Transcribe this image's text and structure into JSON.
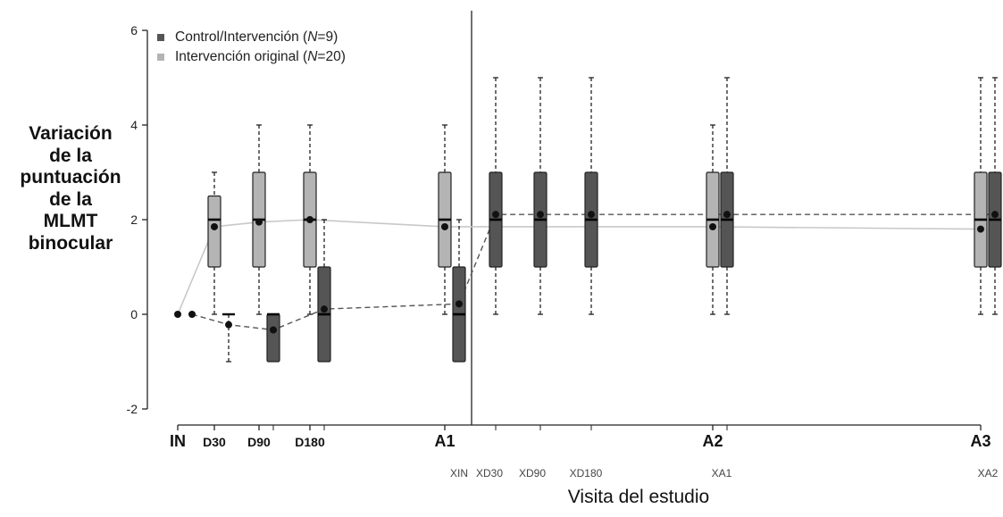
{
  "chart_data": {
    "type": "box",
    "ylabel_lines": [
      "Variación",
      "de la",
      "puntuación",
      "de la",
      "MLMT",
      "binocular"
    ],
    "xlabel": "Visita del estudio",
    "ylim": [
      -2,
      6
    ],
    "yticks": [
      -2,
      0,
      2,
      4,
      6
    ],
    "legend_position": "top-left",
    "colors": {
      "control": "#555555",
      "original": "#b4b4b4",
      "mean_line_original": "#c8c8c8",
      "mean_line_control": "#555555"
    },
    "visits_main": [
      "IN",
      "D30",
      "D90",
      "D180",
      "A1",
      "A2",
      "A3"
    ],
    "visits_crossover": [
      "XIN",
      "XD30",
      "XD90",
      "XD180",
      "XA1",
      "XA2"
    ],
    "series": [
      {
        "name": "Control/Intervención (N=9)",
        "boxes": [
          {
            "visit": "IN",
            "q1": 0,
            "median": 0,
            "q3": 0,
            "min": 0,
            "max": 0,
            "mean": 0
          },
          {
            "visit": "D30",
            "q1": 0,
            "median": 0,
            "q3": 0,
            "min": -1,
            "max": 0,
            "mean": -0.22
          },
          {
            "visit": "D90",
            "q1": -1,
            "median": 0,
            "q3": 0,
            "min": -1,
            "max": 0,
            "mean": -0.33
          },
          {
            "visit": "D180",
            "q1": -1,
            "median": 0,
            "q3": 1,
            "min": -1,
            "max": 2,
            "mean": 0.11
          },
          {
            "visit": "A1 / XIN",
            "q1": -1,
            "median": 0,
            "q3": 1,
            "min": -1,
            "max": 2,
            "mean": 0.22
          },
          {
            "visit": "XD30",
            "q1": 1,
            "median": 2,
            "q3": 3,
            "min": 0,
            "max": 5,
            "mean": 2.11
          },
          {
            "visit": "XD90",
            "q1": 1,
            "median": 2,
            "q3": 3,
            "min": 0,
            "max": 5,
            "mean": 2.11
          },
          {
            "visit": "XD180",
            "q1": 1,
            "median": 2,
            "q3": 3,
            "min": 0,
            "max": 5,
            "mean": 2.11
          },
          {
            "visit": "A2 / XA1",
            "q1": 1,
            "median": 2,
            "q3": 3,
            "min": 0,
            "max": 5,
            "mean": 2.11
          },
          {
            "visit": "A3 / XA2",
            "q1": 1,
            "median": 2,
            "q3": 3,
            "min": 0,
            "max": 5,
            "mean": 2.11
          }
        ]
      },
      {
        "name": "Intervención original (N=20)",
        "boxes": [
          {
            "visit": "IN",
            "q1": 0,
            "median": 0,
            "q3": 0,
            "min": 0,
            "max": 0,
            "mean": 0
          },
          {
            "visit": "D30",
            "q1": 1,
            "median": 2,
            "q3": 2.5,
            "min": 0,
            "max": 3,
            "mean": 1.85
          },
          {
            "visit": "D90",
            "q1": 1,
            "median": 2,
            "q3": 3,
            "min": 0,
            "max": 4,
            "mean": 1.95
          },
          {
            "visit": "D180",
            "q1": 1,
            "median": 2,
            "q3": 3,
            "min": 0,
            "max": 4,
            "mean": 2.0
          },
          {
            "visit": "A1",
            "q1": 1,
            "median": 2,
            "q3": 3,
            "min": 0,
            "max": 4,
            "mean": 1.85
          },
          {
            "visit": "A2",
            "q1": 1,
            "median": 2,
            "q3": 3,
            "min": 0,
            "max": 4,
            "mean": 1.85
          },
          {
            "visit": "A3",
            "q1": 1,
            "median": 2,
            "q3": 3,
            "min": 0,
            "max": 5,
            "mean": 1.8
          }
        ]
      }
    ]
  },
  "legend": [
    {
      "name_prefix": "Control/Intervención (",
      "n_symbol": "N",
      "name_suffix": "=9)",
      "color": "#555555"
    },
    {
      "name_prefix": "Intervención original (",
      "n_symbol": "N",
      "name_suffix": "=20)",
      "color": "#b4b4b4"
    }
  ]
}
